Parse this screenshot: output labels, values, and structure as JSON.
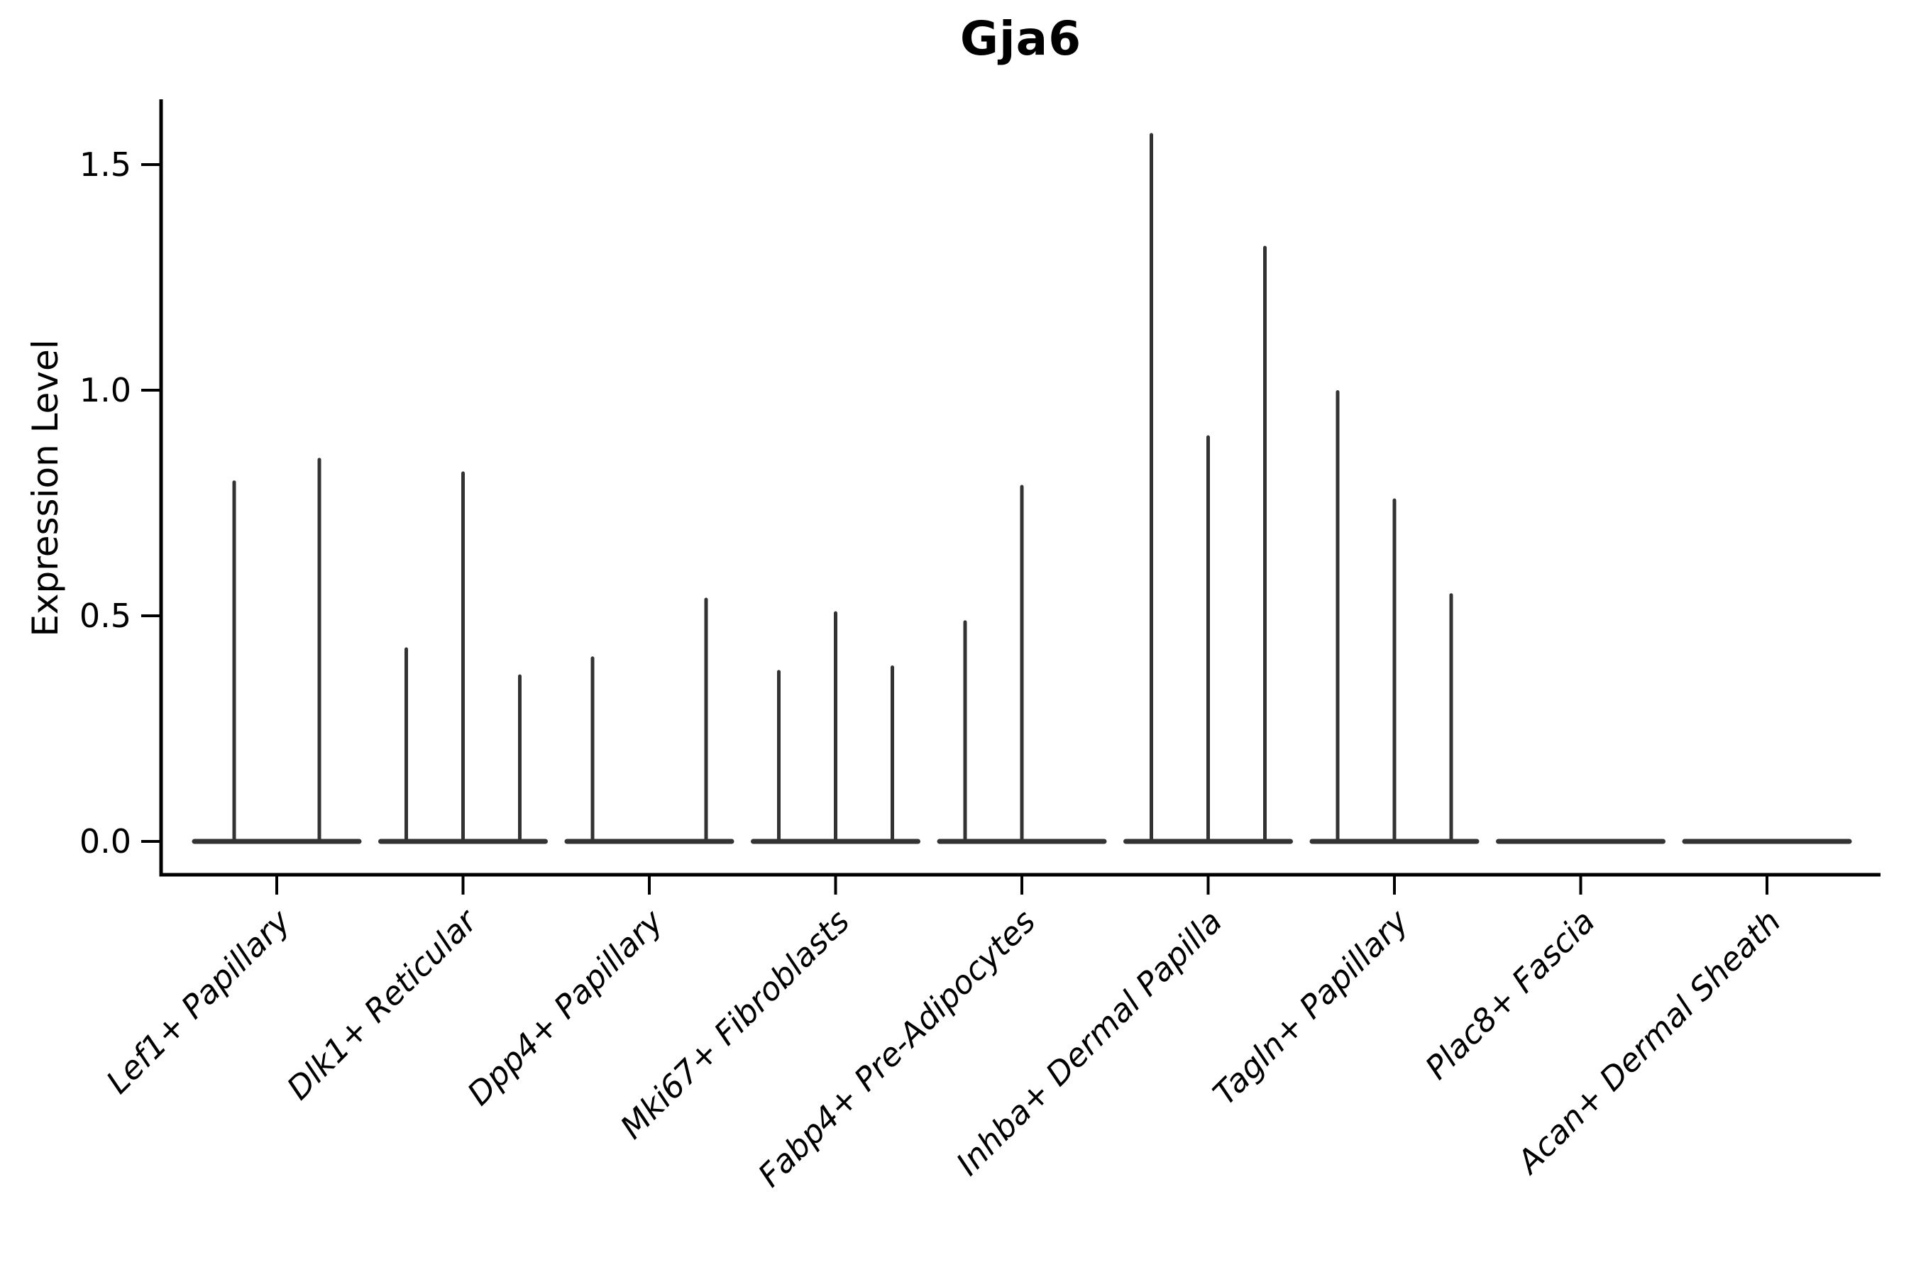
{
  "title": "Gja6",
  "colors": {
    "background": "#ffffff",
    "axis": "#000000",
    "violin": "#333333",
    "text": "#000000"
  },
  "chart_data": {
    "type": "violin",
    "title": "Gja6",
    "xlabel": "",
    "ylabel": "Expression Level",
    "ylim": [
      0,
      1.62
    ],
    "grid": false,
    "legend": "none",
    "y_ticks": [
      0.0,
      0.5,
      1.0,
      1.5
    ],
    "y_tick_labels_top_down": [
      "1.5",
      "1.0",
      "0.5",
      "0.0"
    ],
    "x_tick_rotation_degrees": 45,
    "description": "Violin plot of Gja6 expression per fibroblast cluster; each category holds side-by-side very thin violins collapsed at 0 with narrow spikes; violin_max_values give the top of each spike in Expression Level units (0 = flat violin at baseline).",
    "categories": [
      {
        "label": "Lef1+ Papillary",
        "violin_max_values": [
          0.8,
          0.85
        ]
      },
      {
        "label": "Dlk1+ Reticular",
        "violin_max_values": [
          0.43,
          0.82,
          0.37
        ]
      },
      {
        "label": "Dpp4+ Papillary",
        "violin_max_values": [
          0.41,
          0.0,
          0.54
        ]
      },
      {
        "label": "Mki67+ Fibroblasts",
        "violin_max_values": [
          0.38,
          0.51,
          0.39
        ]
      },
      {
        "label": "Fabp4+ Pre-Adipocytes",
        "violin_max_values": [
          0.49,
          0.79,
          0.0
        ]
      },
      {
        "label": "Inhba+ Dermal Papilla",
        "violin_max_values": [
          1.57,
          0.9,
          1.32
        ]
      },
      {
        "label": "Tagln+ Papillary",
        "violin_max_values": [
          1.0,
          0.76,
          0.55
        ]
      },
      {
        "label": "Plac8+ Fascia",
        "violin_max_values": [
          0.0,
          0.0,
          0.0
        ]
      },
      {
        "label": "Acan+ Dermal Sheath",
        "violin_max_values": [
          0.0,
          0.0,
          0.0
        ]
      }
    ]
  }
}
